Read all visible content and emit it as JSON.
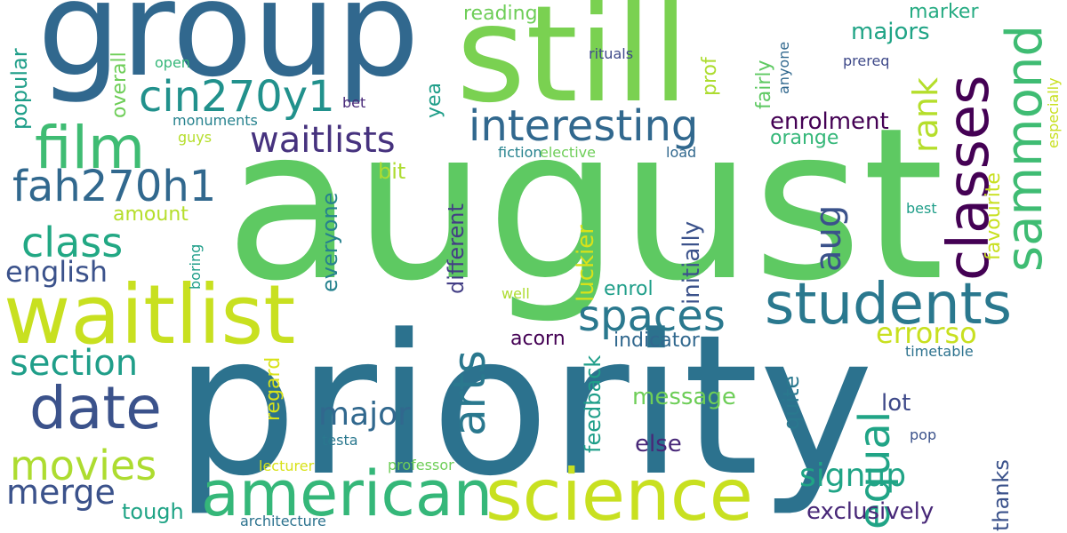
{
  "palette": {
    "dark_purple": "#440154",
    "indigo": "#3b528b",
    "blue": "#2c728e",
    "teal": "#21918c",
    "green_teal": "#28ae80",
    "green": "#5ec962",
    "light_green": "#addc30",
    "yellow_green": "#c8e020"
  },
  "words": [
    {
      "text": "august",
      "color": "#5ec962",
      "rotate": false,
      "weight": "largest"
    },
    {
      "text": "priority",
      "color": "#2c728e",
      "rotate": false,
      "weight": "largest"
    },
    {
      "text": "group",
      "color": "#31688e",
      "rotate": false,
      "weight": "large"
    },
    {
      "text": "still",
      "color": "#7ad151",
      "rotate": false,
      "weight": "large"
    },
    {
      "text": "waitlist",
      "color": "#c8e020",
      "rotate": false,
      "weight": "large"
    },
    {
      "text": "science",
      "color": "#c8e020",
      "rotate": false,
      "weight": "large"
    },
    {
      "text": "american",
      "color": "#35b779",
      "rotate": false,
      "weight": "large"
    },
    {
      "text": "students",
      "color": "#2a788e",
      "rotate": false,
      "weight": "medium"
    },
    {
      "text": "classes",
      "color": "#440154",
      "rotate": true,
      "weight": "medium"
    },
    {
      "text": "sammond",
      "color": "#3fbc73",
      "rotate": true,
      "weight": "medium"
    },
    {
      "text": "film",
      "color": "#3fbc73",
      "rotate": false,
      "weight": "medium"
    },
    {
      "text": "date",
      "color": "#3b528b",
      "rotate": false,
      "weight": "medium"
    },
    {
      "text": "interesting",
      "color": "#31688e",
      "rotate": false,
      "weight": "medium"
    },
    {
      "text": "cin270y1",
      "color": "#21918c",
      "rotate": false,
      "weight": "medium"
    },
    {
      "text": "fah270h1",
      "color": "#31688e",
      "rotate": false,
      "weight": "medium"
    },
    {
      "text": "waitlists",
      "color": "#46327e",
      "rotate": false,
      "weight": "medium"
    },
    {
      "text": "spaces",
      "color": "#2a788e",
      "rotate": false,
      "weight": "medium"
    },
    {
      "text": "equal",
      "color": "#20a486",
      "rotate": true,
      "weight": "medium"
    },
    {
      "text": "movies",
      "color": "#addc30",
      "rotate": false,
      "weight": "medium"
    },
    {
      "text": "section",
      "color": "#1f9e89",
      "rotate": false,
      "weight": "medium"
    },
    {
      "text": "class",
      "color": "#22a884",
      "rotate": false,
      "weight": "medium"
    },
    {
      "text": "arts",
      "color": "#2a788e",
      "rotate": true,
      "weight": "medium"
    },
    {
      "text": "merge",
      "color": "#3b528b",
      "rotate": false,
      "weight": "medium"
    },
    {
      "text": "aug",
      "color": "#3b528b",
      "rotate": true,
      "weight": "medium"
    },
    {
      "text": "rank",
      "color": "#b5de2b",
      "rotate": true,
      "weight": "medium"
    },
    {
      "text": "major",
      "color": "#31688e",
      "rotate": false,
      "weight": "small"
    },
    {
      "text": "signup",
      "color": "#20a486",
      "rotate": false,
      "weight": "small"
    },
    {
      "text": "errorso",
      "color": "#c8e020",
      "rotate": false,
      "weight": "small"
    },
    {
      "text": "english",
      "color": "#3b528b",
      "rotate": false,
      "weight": "small"
    },
    {
      "text": "exclusively",
      "color": "#482878",
      "rotate": false,
      "weight": "small"
    },
    {
      "text": "message",
      "color": "#6ece58",
      "rotate": false,
      "weight": "small"
    },
    {
      "text": "enrolment",
      "color": "#440154",
      "rotate": false,
      "weight": "small"
    },
    {
      "text": "majors",
      "color": "#20a486",
      "rotate": false,
      "weight": "small"
    },
    {
      "text": "tough",
      "color": "#20a486",
      "rotate": false,
      "weight": "small"
    },
    {
      "text": "enrol",
      "color": "#1f9e89",
      "rotate": false,
      "weight": "small"
    },
    {
      "text": "indicator",
      "color": "#31688e",
      "rotate": false,
      "weight": "small"
    },
    {
      "text": "reading",
      "color": "#6ece58",
      "rotate": false,
      "weight": "small"
    },
    {
      "text": "marker",
      "color": "#25ab82",
      "rotate": false,
      "weight": "small"
    },
    {
      "text": "orange",
      "color": "#35b779",
      "rotate": false,
      "weight": "small"
    },
    {
      "text": "acorn",
      "color": "#440154",
      "rotate": false,
      "weight": "small"
    },
    {
      "text": "else",
      "color": "#482878",
      "rotate": false,
      "weight": "small"
    },
    {
      "text": "lot",
      "color": "#3e4989",
      "rotate": false,
      "weight": "small"
    },
    {
      "text": "amount",
      "color": "#b5de2b",
      "rotate": false,
      "weight": "small"
    },
    {
      "text": "bit",
      "color": "#addc30",
      "rotate": false,
      "weight": "small"
    },
    {
      "text": "popular",
      "color": "#1f9e89",
      "rotate": true,
      "weight": "small"
    },
    {
      "text": "everyone",
      "color": "#26828e",
      "rotate": true,
      "weight": "small"
    },
    {
      "text": "different",
      "color": "#433e85",
      "rotate": true,
      "weight": "small"
    },
    {
      "text": "luckier",
      "color": "#d8e219",
      "rotate": true,
      "weight": "small"
    },
    {
      "text": "initially",
      "color": "#3b528b",
      "rotate": true,
      "weight": "small"
    },
    {
      "text": "feedback",
      "color": "#1f9e89",
      "rotate": true,
      "weight": "small"
    },
    {
      "text": "quite",
      "color": "#2a788e",
      "rotate": true,
      "weight": "small"
    },
    {
      "text": "regard",
      "color": "#d8e219",
      "rotate": true,
      "weight": "small"
    },
    {
      "text": "favourite",
      "color": "#c8e020",
      "rotate": true,
      "weight": "small"
    },
    {
      "text": "thanks",
      "color": "#3b528b",
      "rotate": true,
      "weight": "small"
    },
    {
      "text": "overall",
      "color": "#6ece58",
      "rotate": true,
      "weight": "small"
    },
    {
      "text": "yea",
      "color": "#1f9e89",
      "rotate": true,
      "weight": "small"
    },
    {
      "text": "prof",
      "color": "#addc30",
      "rotate": true,
      "weight": "small"
    },
    {
      "text": "fairly",
      "color": "#5ec962",
      "rotate": true,
      "weight": "small"
    },
    {
      "text": "anyone",
      "color": "#31688e",
      "rotate": true,
      "weight": "tiny"
    },
    {
      "text": "especially",
      "color": "#c8e020",
      "rotate": true,
      "weight": "tiny"
    },
    {
      "text": "boring",
      "color": "#1f9e89",
      "rotate": true,
      "weight": "tiny"
    },
    {
      "text": "rituals",
      "color": "#3e4989",
      "rotate": false,
      "weight": "tiny"
    },
    {
      "text": "prereq",
      "color": "#3e4989",
      "rotate": false,
      "weight": "tiny"
    },
    {
      "text": "open",
      "color": "#35b779",
      "rotate": false,
      "weight": "tiny"
    },
    {
      "text": "bet",
      "color": "#482878",
      "rotate": false,
      "weight": "tiny"
    },
    {
      "text": "monuments",
      "color": "#26828e",
      "rotate": false,
      "weight": "tiny"
    },
    {
      "text": "guys",
      "color": "#b5de2b",
      "rotate": false,
      "weight": "tiny"
    },
    {
      "text": "fiction",
      "color": "#26828e",
      "rotate": false,
      "weight": "tiny"
    },
    {
      "text": "elective",
      "color": "#6ece58",
      "rotate": false,
      "weight": "tiny"
    },
    {
      "text": "load",
      "color": "#31688e",
      "rotate": false,
      "weight": "tiny"
    },
    {
      "text": "best",
      "color": "#1f9e89",
      "rotate": false,
      "weight": "tiny"
    },
    {
      "text": "well",
      "color": "#addc30",
      "rotate": false,
      "weight": "tiny"
    },
    {
      "text": "timetable",
      "color": "#2c728e",
      "rotate": false,
      "weight": "tiny"
    },
    {
      "text": "testa",
      "color": "#2a788e",
      "rotate": false,
      "weight": "tiny"
    },
    {
      "text": "pop",
      "color": "#3b528b",
      "rotate": false,
      "weight": "tiny"
    },
    {
      "text": "lecturer",
      "color": "#d8e219",
      "rotate": false,
      "weight": "tiny"
    },
    {
      "text": "professor",
      "color": "#6ece58",
      "rotate": false,
      "weight": "tiny"
    },
    {
      "text": "architecture",
      "color": "#2c728e",
      "rotate": false,
      "weight": "tiny"
    }
  ]
}
